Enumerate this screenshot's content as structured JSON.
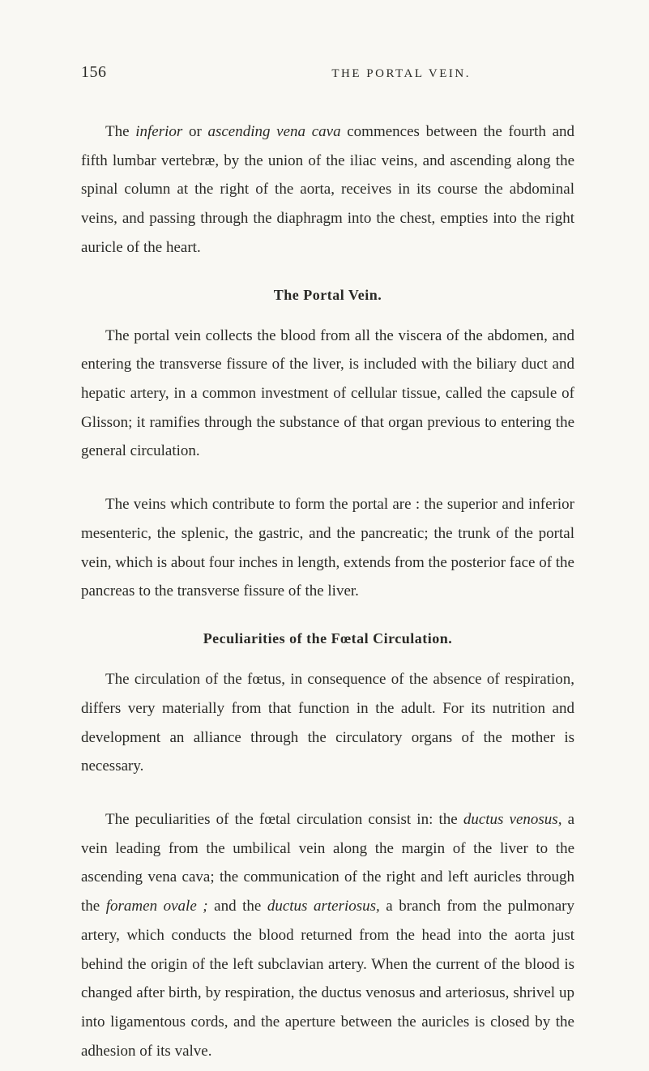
{
  "page": {
    "number": "156",
    "running_header": "THE PORTAL VEIN."
  },
  "intro_paragraph": {
    "text_pre_i1": "The ",
    "i1": "inferior",
    "text_mid1": " or ",
    "i2": "ascending vena cava",
    "text_rest": " commences between the fourth and fifth lumbar vertebræ, by the union of the iliac veins, and ascending along the spinal column at the right of the aorta, receives in its course the abdominal veins, and passing through the diaphragm into the chest, empties into the right auricle of the heart."
  },
  "section1": {
    "heading": "The Portal Vein.",
    "para1": "The portal vein collects the blood from all the viscera of the abdomen, and entering the transverse fissure of the liver, is included with the biliary duct and hepatic artery, in a common investment of cellular tissue, called the capsule of Glisson; it ramifies through the substance of that organ previous to entering the general circulation.",
    "para2": "The veins which contribute to form the portal are : the superior and inferior mesenteric, the splenic, the gastric, and the pancreatic; the trunk of the portal vein, which is about four inches in length, extends from the posterior face of the pancreas to the transverse fissure of the liver."
  },
  "section2": {
    "heading": "Peculiarities of the Fœtal Circulation.",
    "para1": "The circulation of the fœtus, in consequence of the absence of respiration, differs very materially from that function in the adult. For its nutrition and development an alliance through the circulatory organs of the mother is necessary.",
    "para2_pre": "The peculiarities of the fœtal circulation consist in: the ",
    "para2_i1": "ductus venosus,",
    "para2_mid1": " a vein leading from the umbilical vein along the margin of the liver to the ascending vena cava; the communication of the right and left auricles through the ",
    "para2_i2": "foramen ovale ;",
    "para2_mid2": " and the ",
    "para2_i3": "ductus arteriosus,",
    "para2_rest": " a branch from the pulmonary artery, which conducts the blood returned from the head into the aorta just behind the origin of the left subclavian artery. When the current of the blood is changed after birth, by respiration, the ductus venosus and arteriosus, shrivel up into ligamentous cords, and the aperture between the auricles is closed by the adhesion of its valve."
  }
}
